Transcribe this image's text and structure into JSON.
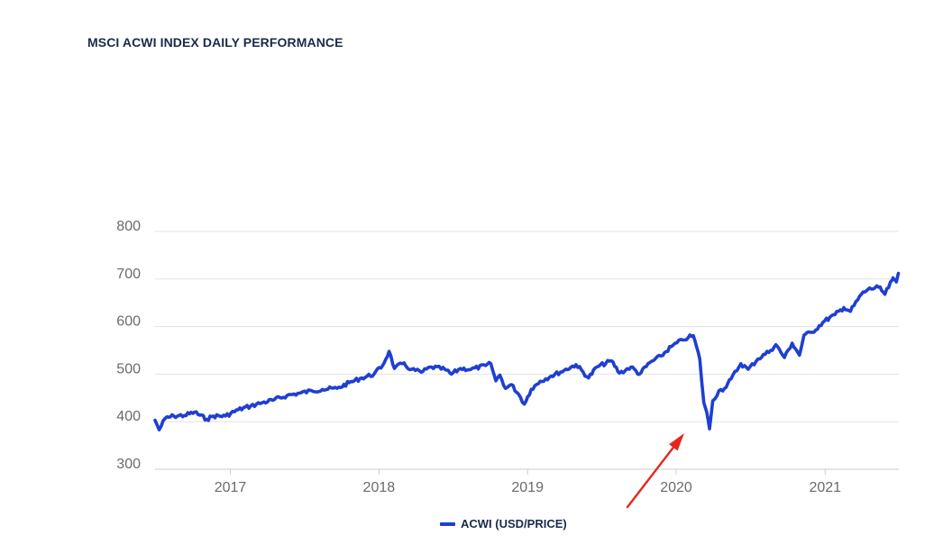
{
  "header": {
    "title": "MSCI ACWI INDEX DAILY PERFORMANCE"
  },
  "colors": {
    "series": "#1f3fd1",
    "grid": "#e3e3e3",
    "axis": "#cccccc",
    "annotation_arrow": "#e3281f",
    "title": "#1b2a4a"
  },
  "legend": {
    "label": "ACWI (USD/PRICE)",
    "placement": "bottom-center"
  },
  "chart_data": {
    "type": "line",
    "title": "MSCI ACWI INDEX DAILY PERFORMANCE",
    "xlabel": "",
    "ylabel": "",
    "ylim": [
      300,
      800
    ],
    "xlim": [
      "2016-06-30",
      "2021-07-01"
    ],
    "yticks": [
      300,
      400,
      500,
      600,
      700,
      800
    ],
    "xticks": [
      "2017",
      "2018",
      "2019",
      "2020",
      "2021"
    ],
    "grid": true,
    "series": [
      {
        "name": "ACWI (USD/PRICE)",
        "x": [
          "2016-06-30",
          "2016-07-10",
          "2016-07-25",
          "2016-08-15",
          "2016-09-10",
          "2016-10-05",
          "2016-11-04",
          "2016-11-20",
          "2016-12-20",
          "2017-01-20",
          "2017-02-20",
          "2017-03-20",
          "2017-04-15",
          "2017-05-20",
          "2017-06-20",
          "2017-07-20",
          "2017-08-15",
          "2017-09-20",
          "2017-10-20",
          "2017-11-20",
          "2017-12-20",
          "2018-01-10",
          "2018-01-26",
          "2018-02-08",
          "2018-02-27",
          "2018-03-22",
          "2018-04-15",
          "2018-05-10",
          "2018-06-12",
          "2018-06-28",
          "2018-07-20",
          "2018-08-15",
          "2018-09-20",
          "2018-10-03",
          "2018-10-15",
          "2018-10-25",
          "2018-11-08",
          "2018-11-22",
          "2018-12-10",
          "2018-12-24",
          "2019-01-10",
          "2019-02-01",
          "2019-02-28",
          "2019-04-01",
          "2019-04-30",
          "2019-05-31",
          "2019-06-20",
          "2019-07-26",
          "2019-08-15",
          "2019-09-12",
          "2019-10-03",
          "2019-10-28",
          "2019-11-25",
          "2019-12-20",
          "2020-01-17",
          "2020-01-31",
          "2020-02-12",
          "2020-02-28",
          "2020-03-09",
          "2020-03-16",
          "2020-03-23",
          "2020-03-31",
          "2020-04-15",
          "2020-04-29",
          "2020-05-15",
          "2020-06-08",
          "2020-06-26",
          "2020-07-20",
          "2020-08-20",
          "2020-09-02",
          "2020-09-23",
          "2020-10-12",
          "2020-10-30",
          "2020-11-10",
          "2020-11-30",
          "2020-12-31",
          "2021-01-25",
          "2021-02-16",
          "2021-03-04",
          "2021-03-31",
          "2021-04-16",
          "2021-05-12",
          "2021-05-28",
          "2021-06-15",
          "2021-06-18",
          "2021-06-25",
          "2021-06-30"
        ],
        "values": [
          403,
          383,
          407,
          412,
          413,
          420,
          405,
          412,
          412,
          425,
          433,
          440,
          445,
          455,
          460,
          465,
          468,
          470,
          482,
          492,
          500,
          518,
          548,
          512,
          522,
          510,
          504,
          515,
          510,
          500,
          512,
          510,
          518,
          522,
          486,
          498,
          470,
          478,
          458,
          437,
          468,
          485,
          496,
          508,
          520,
          492,
          515,
          528,
          502,
          515,
          500,
          524,
          538,
          558,
          572,
          577,
          581,
          532,
          440,
          420,
          385,
          444,
          465,
          470,
          490,
          522,
          510,
          532,
          550,
          562,
          535,
          565,
          540,
          582,
          588,
          612,
          625,
          640,
          632,
          668,
          678,
          683,
          668,
          698,
          700,
          694,
          712
        ]
      }
    ],
    "annotations": [
      {
        "type": "arrow",
        "target_x": "2020-03-23",
        "target_y": 385,
        "label": ""
      }
    ]
  }
}
